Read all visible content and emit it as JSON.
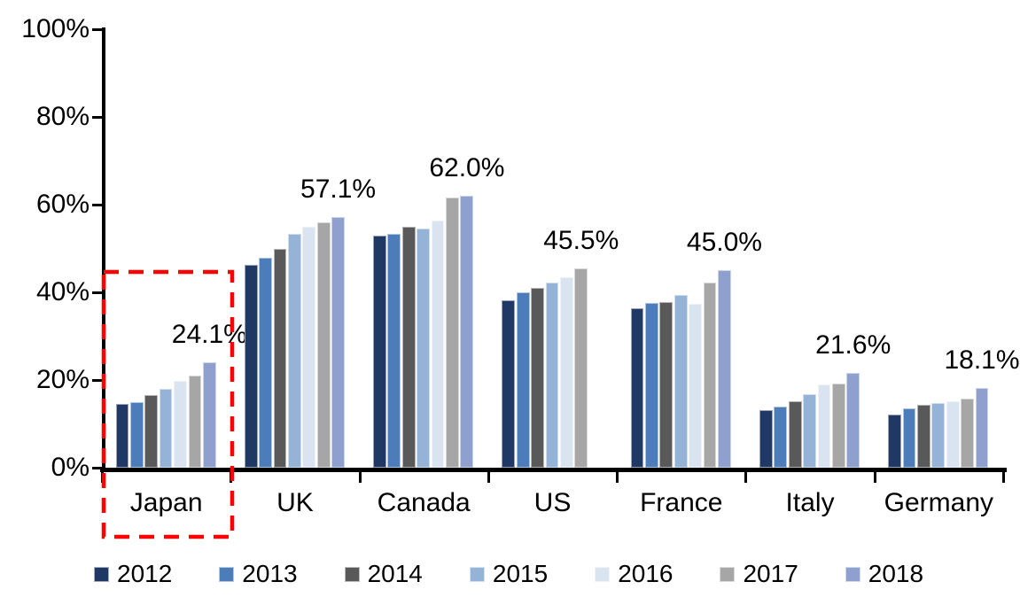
{
  "chart_data": {
    "type": "bar",
    "title": "",
    "xlabel": "",
    "ylabel": "",
    "categories": [
      "Japan",
      "UK",
      "Canada",
      "US",
      "France",
      "Italy",
      "Germany"
    ],
    "series": [
      {
        "name": "2012",
        "color": "#1F3864",
        "values": [
          14.6,
          46.3,
          52.9,
          38.1,
          36.4,
          13.2,
          12.2
        ]
      },
      {
        "name": "2013",
        "color": "#4D7CBB",
        "values": [
          14.9,
          47.9,
          53.4,
          39.9,
          37.5,
          13.9,
          13.6
        ]
      },
      {
        "name": "2014",
        "color": "#595959",
        "values": [
          16.5,
          50.0,
          54.9,
          41.0,
          37.7,
          15.2,
          14.3
        ]
      },
      {
        "name": "2015",
        "color": "#95B3D7",
        "values": [
          17.9,
          53.3,
          54.6,
          42.2,
          39.3,
          16.8,
          14.8
        ]
      },
      {
        "name": "2016",
        "color": "#DAE4F1",
        "values": [
          19.8,
          54.9,
          56.3,
          43.5,
          37.3,
          19.0,
          15.2
        ]
      },
      {
        "name": "2017",
        "color": "#A6A6A6",
        "values": [
          21.0,
          55.9,
          61.7,
          45.5,
          42.2,
          19.2,
          15.7
        ]
      },
      {
        "name": "2018",
        "color": "#8FA0CE",
        "values": [
          24.1,
          57.1,
          62.0,
          null,
          45.0,
          21.6,
          18.1
        ]
      }
    ],
    "group_value_labels": [
      "24.1%",
      "57.1%",
      "62.0%",
      "45.5%",
      "45.0%",
      "21.6%",
      "18.1%"
    ],
    "y_ticks": [
      "0%",
      "20%",
      "40%",
      "60%",
      "80%",
      "100%"
    ],
    "ylim": [
      0,
      100
    ],
    "grid": false,
    "legend_position": "bottom",
    "axis_color": "#000000",
    "highlight": {
      "category": "Japan",
      "style": "dashed-box",
      "color": "#FF0000"
    }
  }
}
